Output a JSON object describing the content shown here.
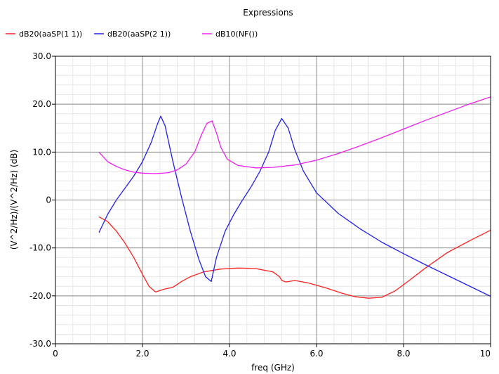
{
  "chart_data": {
    "type": "line",
    "title": "Expressions",
    "xlabel": "freq (GHz)",
    "ylabel": "(V^2/Hz)/(V^2/Hz) (dB)",
    "xlim": [
      0,
      10
    ],
    "ylim": [
      -30,
      30
    ],
    "x_ticks": [
      0,
      2,
      4,
      6,
      8,
      10
    ],
    "x_tick_labels": [
      "0",
      "2.0",
      "4.0",
      "6.0",
      "8.0",
      "10"
    ],
    "y_ticks": [
      30,
      20,
      10,
      0,
      -10,
      -20,
      -30
    ],
    "y_tick_labels": [
      "30.0",
      "20.0",
      "10.0",
      "0",
      "-10.0",
      "-20.0",
      "-30.0"
    ],
    "grid": true,
    "legend_position": "top-left",
    "series": [
      {
        "name": "dB20(aaSP(1 1))",
        "color": "#ff2020",
        "x": [
          1.0,
          1.2,
          1.4,
          1.6,
          1.8,
          2.0,
          2.15,
          2.3,
          2.5,
          2.7,
          2.9,
          3.1,
          3.4,
          3.8,
          4.2,
          4.6,
          5.0,
          5.15,
          5.2,
          5.3,
          5.5,
          5.8,
          6.2,
          6.6,
          6.9,
          7.2,
          7.5,
          7.8,
          8.1,
          8.5,
          9.0,
          9.5,
          10.0
        ],
        "y": [
          -3.5,
          -4.5,
          -6.5,
          -9.0,
          -12.0,
          -15.5,
          -18.0,
          -19.2,
          -18.6,
          -18.2,
          -17.0,
          -16.0,
          -15.0,
          -14.4,
          -14.2,
          -14.3,
          -15.0,
          -16.0,
          -16.8,
          -17.1,
          -16.8,
          -17.3,
          -18.3,
          -19.5,
          -20.2,
          -20.5,
          -20.3,
          -19.0,
          -17.0,
          -14.2,
          -11.0,
          -8.6,
          -6.3
        ]
      },
      {
        "name": "dB20(aaSP(2 1))",
        "color": "#2020ee",
        "x": [
          1.0,
          1.2,
          1.4,
          1.6,
          1.8,
          2.0,
          2.2,
          2.35,
          2.42,
          2.52,
          2.7,
          2.9,
          3.1,
          3.3,
          3.45,
          3.58,
          3.7,
          3.9,
          4.1,
          4.3,
          4.5,
          4.7,
          4.9,
          5.05,
          5.2,
          5.35,
          5.5,
          5.7,
          6.0,
          6.5,
          7.0,
          7.5,
          8.0,
          8.5,
          9.0,
          9.5,
          10.0
        ],
        "y": [
          -6.8,
          -3.0,
          0.0,
          2.5,
          5.0,
          8.0,
          12.0,
          16.0,
          17.5,
          15.5,
          8.0,
          0.5,
          -6.5,
          -12.5,
          -16.0,
          -17.0,
          -12.0,
          -6.5,
          -3.0,
          0.0,
          2.8,
          6.0,
          10.0,
          14.5,
          17.0,
          15.0,
          10.5,
          6.0,
          1.5,
          -2.8,
          -6.0,
          -8.8,
          -11.2,
          -13.5,
          -15.7,
          -17.9,
          -20.1
        ]
      },
      {
        "name": "dB10(NF())",
        "color": "#ee20ee",
        "x": [
          1.0,
          1.2,
          1.4,
          1.6,
          1.8,
          2.0,
          2.3,
          2.6,
          2.8,
          3.0,
          3.2,
          3.35,
          3.48,
          3.6,
          3.7,
          3.8,
          3.95,
          4.2,
          4.6,
          5.0,
          5.5,
          6.0,
          6.5,
          7.0,
          7.5,
          8.0,
          8.5,
          9.0,
          9.5,
          10.0
        ],
        "y": [
          10.0,
          8.0,
          7.0,
          6.3,
          5.8,
          5.6,
          5.5,
          5.7,
          6.3,
          7.5,
          10.0,
          13.5,
          16.0,
          16.5,
          14.0,
          11.0,
          8.5,
          7.2,
          6.7,
          6.8,
          7.3,
          8.3,
          9.7,
          11.3,
          13.0,
          14.8,
          16.6,
          18.3,
          20.0,
          21.5
        ]
      }
    ]
  }
}
